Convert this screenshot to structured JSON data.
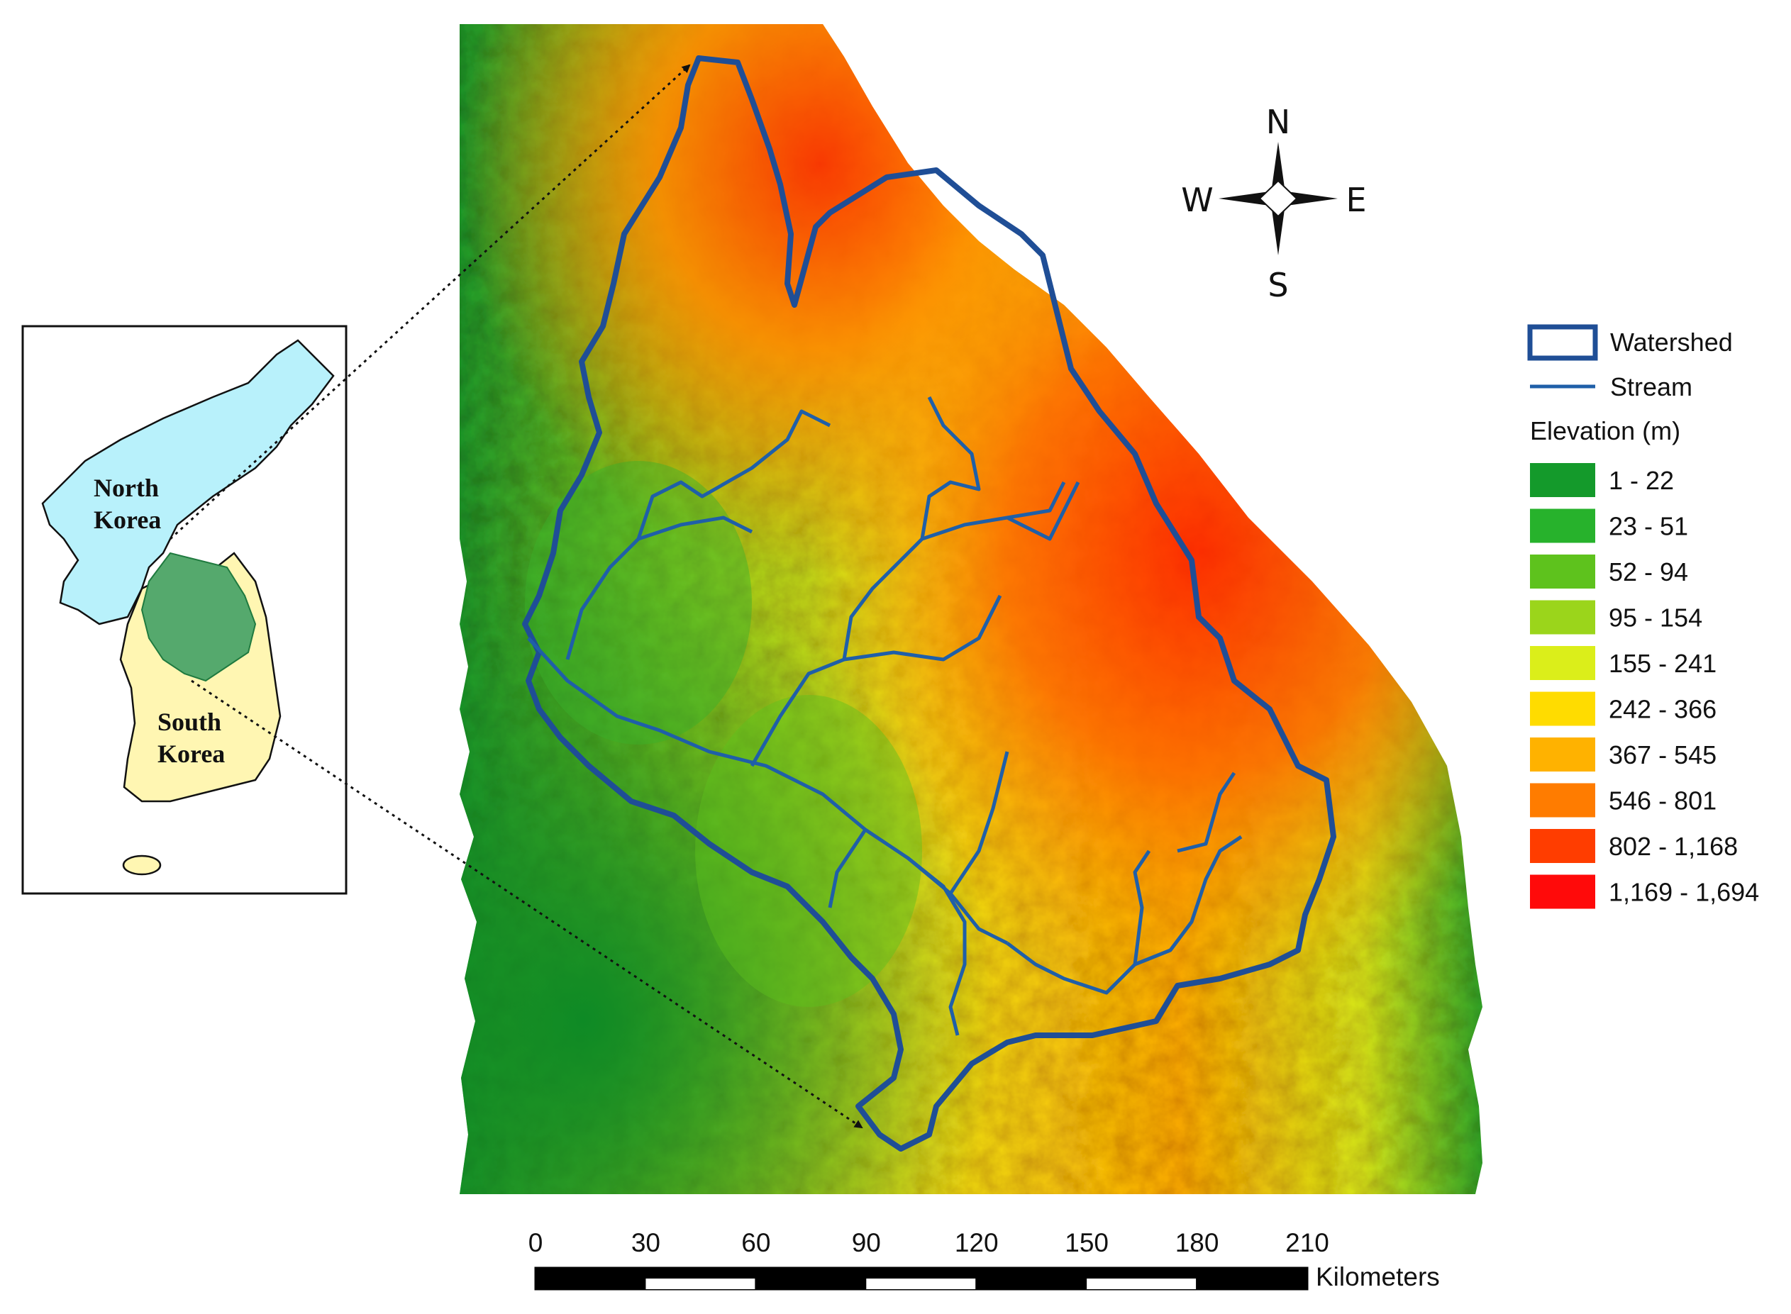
{
  "inset": {
    "north_label_1": "North",
    "north_label_2": "Korea",
    "south_label_1": "South",
    "south_label_2": "Korea",
    "north_color": "#b8f1fb",
    "south_color": "#fff6b2",
    "watershed_color": "#55a96d"
  },
  "compass": {
    "n": "N",
    "s": "S",
    "e": "E",
    "w": "W"
  },
  "legend": {
    "watershed_label": "Watershed",
    "stream_label": "Stream",
    "elevation_title": "Elevation (m)",
    "watershed_color": "#1f4e96",
    "stream_color": "#1f5fa8",
    "classes": [
      {
        "label": "1 - 22",
        "color": "#149a2b"
      },
      {
        "label": "23 - 51",
        "color": "#27b22c"
      },
      {
        "label": "52 - 94",
        "color": "#5ec21d"
      },
      {
        "label": "95 - 154",
        "color": "#9bd51b"
      },
      {
        "label": "155 - 241",
        "color": "#dbee1a"
      },
      {
        "label": "242 - 366",
        "color": "#ffdc00"
      },
      {
        "label": "367 - 545",
        "color": "#ffb200"
      },
      {
        "label": "546 - 801",
        "color": "#ff7c00"
      },
      {
        "label": "802 - 1,168",
        "color": "#ff3d00"
      },
      {
        "label": "1,169 - 1,694",
        "color": "#ff0a0a"
      }
    ]
  },
  "scalebar": {
    "ticks": [
      "0",
      "30",
      "60",
      "90",
      "120",
      "150",
      "180",
      "210"
    ],
    "unit": "Kilometers"
  }
}
